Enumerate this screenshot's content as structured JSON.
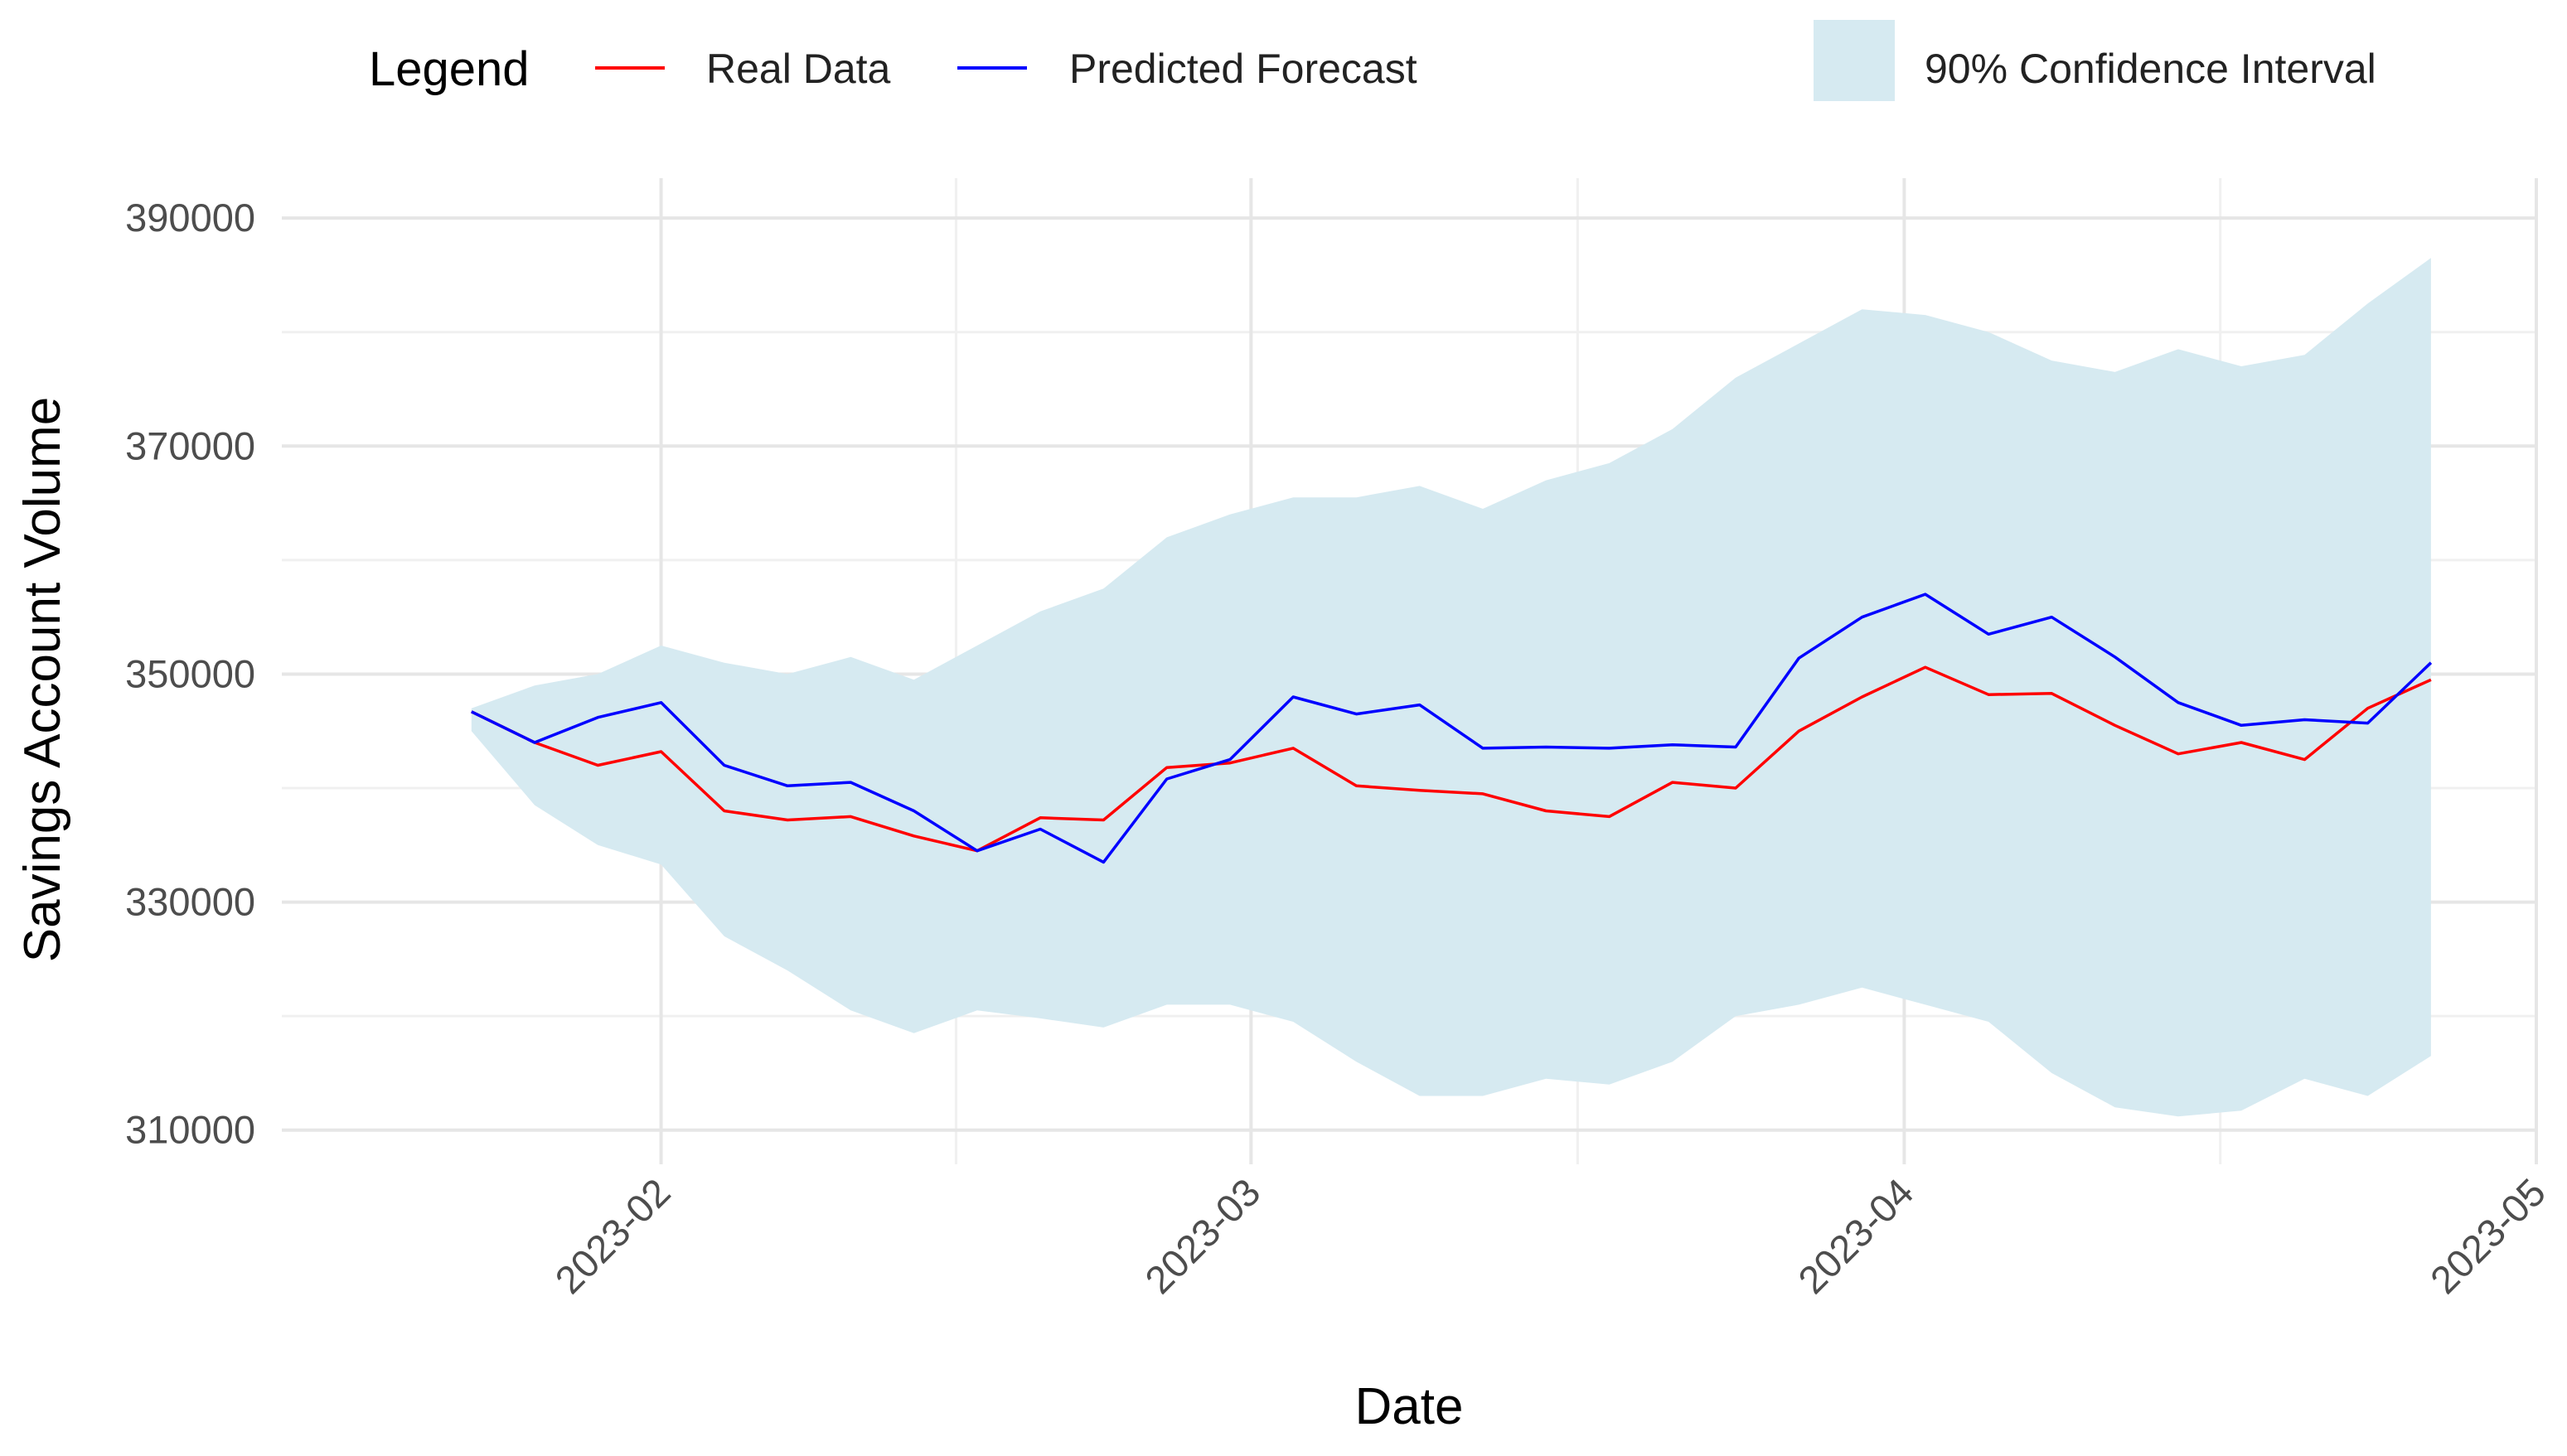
{
  "chart_data": {
    "type": "line",
    "title": "",
    "xlabel": "Date",
    "ylabel": "Savings Account Volume",
    "ylim": [
      307000,
      393500
    ],
    "xlim": [
      "2023-01-14",
      "2023-05-01"
    ],
    "y_ticks": [
      310000,
      330000,
      350000,
      370000,
      390000
    ],
    "y_tick_labels": [
      "310000",
      "330000",
      "350000",
      "370000",
      "390000"
    ],
    "x_ticks": [
      "2023-02-01",
      "2023-03-01",
      "2023-04-01",
      "2023-05-01"
    ],
    "x_tick_labels": [
      "2023-02",
      "2023-03",
      "2023-04",
      "2023-05"
    ],
    "grid": true,
    "legend": {
      "title": "Legend",
      "position": "top",
      "entries": [
        {
          "label": "Real Data",
          "color": "#ff0000",
          "kind": "line"
        },
        {
          "label": "Predicted Forecast",
          "color": "#0000ff",
          "kind": "line"
        },
        {
          "label": "90% Confidence Interval",
          "color": "#d6eaf1",
          "kind": "fill"
        }
      ]
    },
    "x": [
      "2023-01-23",
      "2023-01-26",
      "2023-01-29",
      "2023-02-01",
      "2023-02-04",
      "2023-02-07",
      "2023-02-10",
      "2023-02-13",
      "2023-02-16",
      "2023-02-19",
      "2023-02-22",
      "2023-02-25",
      "2023-02-28",
      "2023-03-03",
      "2023-03-06",
      "2023-03-09",
      "2023-03-12",
      "2023-03-15",
      "2023-03-18",
      "2023-03-21",
      "2023-03-24",
      "2023-03-27",
      "2023-03-30",
      "2023-04-02",
      "2023-04-05",
      "2023-04-08",
      "2023-04-11",
      "2023-04-14",
      "2023-04-17",
      "2023-04-20",
      "2023-04-23",
      "2023-04-26"
    ],
    "series": [
      {
        "name": "Real Data",
        "color": "#ff0000",
        "values": [
          346700,
          344000,
          342000,
          343200,
          338000,
          337200,
          337500,
          335800,
          334500,
          337400,
          337200,
          341800,
          342200,
          343500,
          340200,
          339800,
          339500,
          338000,
          337500,
          340500,
          340000,
          345000,
          348000,
          350600,
          348200,
          348300,
          345500,
          343000,
          344000,
          342500,
          347000,
          349500
        ]
      },
      {
        "name": "Predicted Forecast",
        "color": "#0000ff",
        "values": [
          346700,
          344000,
          346200,
          347500,
          342000,
          340200,
          340500,
          338000,
          334500,
          336400,
          333500,
          340800,
          342500,
          348000,
          346500,
          347300,
          343500,
          343600,
          343500,
          343800,
          343600,
          351400,
          355000,
          357000,
          353500,
          355000,
          351500,
          347500,
          345500,
          346000,
          345700,
          351000
        ]
      },
      {
        "name": "90% Confidence Interval (lower)",
        "color": "#d6eaf1",
        "values": [
          345000,
          338500,
          335000,
          333300,
          327000,
          324000,
          320500,
          318500,
          320500,
          319800,
          319000,
          321000,
          321000,
          319500,
          316000,
          313000,
          313000,
          314500,
          314000,
          316000,
          320000,
          321000,
          322500,
          321000,
          319500,
          315000,
          312000,
          311200,
          311700,
          314500,
          313000,
          316500
        ]
      },
      {
        "name": "90% Confidence Interval (upper)",
        "color": "#d6eaf1",
        "values": [
          347000,
          349000,
          350000,
          352500,
          351000,
          350000,
          351500,
          349500,
          352500,
          355500,
          357500,
          362000,
          364000,
          365500,
          365500,
          366500,
          364500,
          367000,
          368500,
          371500,
          376000,
          379000,
          382000,
          381500,
          380000,
          377500,
          376500,
          378500,
          377000,
          378000,
          382500,
          386500
        ]
      }
    ]
  }
}
